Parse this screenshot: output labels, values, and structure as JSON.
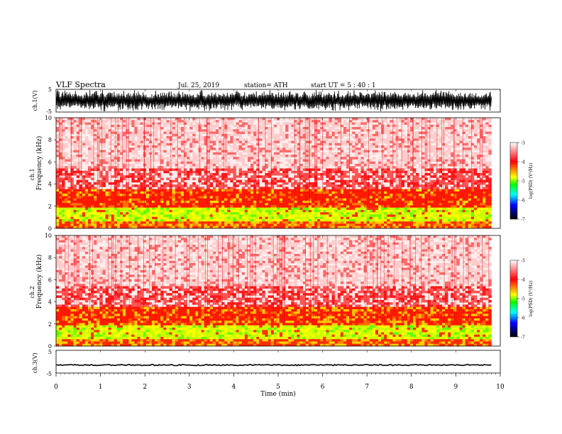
{
  "header": {
    "title": "VLF  Spectra",
    "date": "Jul.  25,  2019",
    "station": "station= ATH",
    "start": "start  UT  =    5  : 40 : 1"
  },
  "panels": {
    "ch1_label": "ch.1(V)",
    "ch1_ticks": [
      "5",
      "-5"
    ],
    "spec1_label": "ch.1",
    "spec2_label": "ch.2",
    "freq_label": "Frequency  (kHz)",
    "ch3_label": "ch.3(V)",
    "ch3_ticks": [
      "5",
      "-5"
    ]
  },
  "colorbar": {
    "label": "log(PSD) (V²/Hz)",
    "ticks": [
      "-3",
      "-4",
      "-5",
      "-6",
      "-7"
    ],
    "colors": [
      "#ffffff",
      "#ff0000",
      "#ffff00",
      "#00ff00",
      "#00ffff",
      "#0000ff",
      "#000000"
    ]
  },
  "chart_data": {
    "type": "heatmap",
    "title": "VLF  Spectra",
    "xlabel": "Time  (min)",
    "x_ticks": [
      "0",
      "1",
      "2",
      "3",
      "4",
      "5",
      "6",
      "7",
      "8",
      "9",
      "10"
    ],
    "xlim": [
      0,
      10
    ],
    "data_end_min": 9.8,
    "ylabel": "Frequency  (kHz)",
    "ylim": [
      0,
      10
    ],
    "y_ticks": [
      "0",
      "2",
      "4",
      "6",
      "8",
      "10"
    ],
    "colorbar_range": [
      -7,
      -3
    ],
    "waveform_ylim": [
      -5,
      5
    ],
    "ch1_waveform_amplitude_V": 5,
    "ch3_waveform_level_V": -1.5,
    "spectrogram_bands": [
      {
        "channel": "ch.1",
        "from_khz": 0,
        "to_khz": 0.6,
        "dominant": "yellow-red"
      },
      {
        "channel": "ch.1",
        "from_khz": 0.6,
        "to_khz": 1.8,
        "dominant": "yellow-green"
      },
      {
        "channel": "ch.1",
        "from_khz": 1.8,
        "to_khz": 3.6,
        "dominant": "red"
      },
      {
        "channel": "ch.1",
        "from_khz": 3.6,
        "to_khz": 10,
        "dominant": "light red"
      },
      {
        "channel": "ch.2",
        "from_khz": 0,
        "to_khz": 0.6,
        "dominant": "yellow-red"
      },
      {
        "channel": "ch.2",
        "from_khz": 0.6,
        "to_khz": 1.8,
        "dominant": "yellow-green"
      },
      {
        "channel": "ch.2",
        "from_khz": 1.8,
        "to_khz": 3.6,
        "dominant": "red-yellow"
      },
      {
        "channel": "ch.2",
        "from_khz": 3.6,
        "to_khz": 10,
        "dominant": "light red"
      }
    ]
  }
}
